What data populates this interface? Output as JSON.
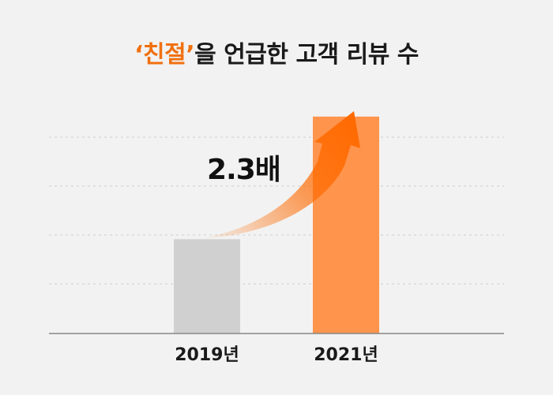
{
  "title": {
    "highlight": "‘친절’",
    "rest": "을 언급한 고객 리뷰 수"
  },
  "chart_data": {
    "type": "bar",
    "title": "‘친절’을 언급한 고객 리뷰 수",
    "categories": [
      "2019년",
      "2021년"
    ],
    "values": [
      1.0,
      2.3
    ],
    "ylim": [
      0,
      2.6
    ],
    "grid": true,
    "annotation": "2.3배",
    "colors": {
      "bar_2019": "#d0d0d0",
      "bar_2021": "#ff944d",
      "arrow": "#ff6a00",
      "grid": "#cfcfcf",
      "axis": "#888888"
    }
  }
}
